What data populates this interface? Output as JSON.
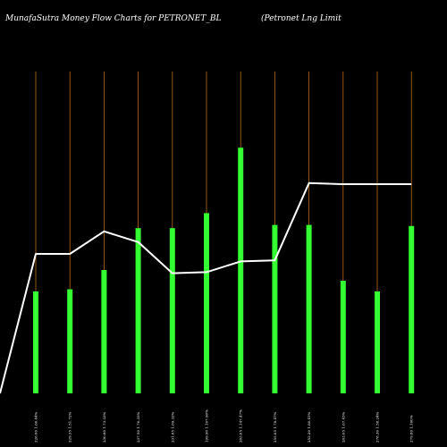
{
  "chart_data": {
    "type": "bar",
    "title": "MunafaSutra  Money Flow  Charts for PETRONET_BL",
    "subtitle": "(Petronet Lng Limit",
    "categories": [
      "226.00 1.66.44%",
      "229.35 1.51.72%",
      "230.60 1.73.33%",
      "237.50 1.76.35%",
      "231.85 1.69.32%",
      "199.90 1.107.90%",
      "283.05 1.147.47%",
      "255.85 1.78.47%",
      "252.20 1.80.41%",
      "263.05 1.67.45%",
      "278.30 1.58.24%",
      "279.80 1.160%"
    ],
    "values": [
      95,
      97,
      115,
      154,
      154,
      168,
      229,
      157,
      157,
      105,
      95,
      156
    ],
    "ylim": [
      0,
      300
    ],
    "line": {
      "name": "price",
      "values": [
        130,
        130,
        151,
        141,
        112,
        113,
        123,
        124,
        196,
        195,
        195
      ],
      "start_value": 0
    },
    "colors": {
      "bar": "#33ff33",
      "line": "#ffffff",
      "grid": "#b86a1a",
      "background": "#000000"
    },
    "grid": "vertical-at-bars",
    "legend": "none"
  }
}
